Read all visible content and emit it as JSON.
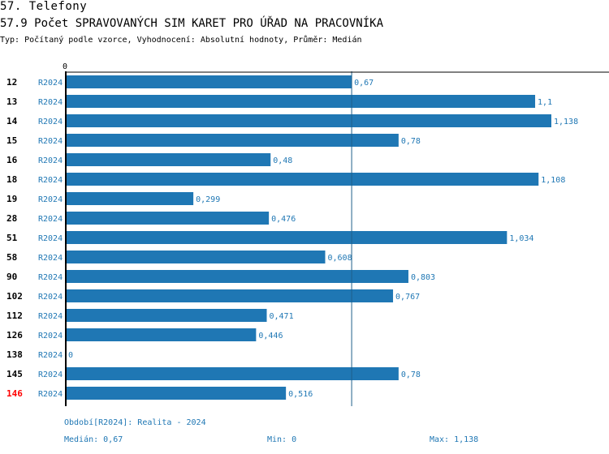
{
  "header": {
    "section": "57. Telefony",
    "title": "57.9 Počet SPRAVOVANÝCH SIM KARET PRO ÚŘAD NA PRACOVNÍKA",
    "subtitle": "Typ: Počítaný podle vzorce, Vyhodnocení: Absolutní hodnoty, Průměr: Medián"
  },
  "chart_data": {
    "type": "bar",
    "orientation": "horizontal",
    "xlim": [
      0,
      1.138
    ],
    "axis_tick_label": "0",
    "categories": [
      "12",
      "13",
      "14",
      "15",
      "16",
      "18",
      "19",
      "28",
      "51",
      "58",
      "90",
      "102",
      "112",
      "126",
      "138",
      "145",
      "146"
    ],
    "highlighted_category": "146",
    "series": [
      {
        "name": "R2024",
        "values": [
          0.67,
          1.1,
          1.138,
          0.78,
          0.48,
          1.108,
          0.299,
          0.476,
          1.034,
          0.608,
          0.803,
          0.767,
          0.471,
          0.446,
          0,
          0.78,
          0.516
        ],
        "labels": [
          "0,67",
          "1,1",
          "1,138",
          "0,78",
          "0,48",
          "1,108",
          "0,299",
          "0,476",
          "1,034",
          "0,608",
          "0,803",
          "0,767",
          "0,471",
          "0,446",
          "0",
          "0,78",
          "0,516"
        ]
      }
    ],
    "reference_line": {
      "name": "Medián",
      "value": 0.67
    },
    "colors": {
      "bar": "#1f77b4",
      "highlight": "#ff0000",
      "axis": "#000000"
    }
  },
  "footer": {
    "period": "Období[R2024]: Realita - 2024",
    "median": "Medián: 0,67",
    "min": "Min: 0",
    "max": "Max: 1,138"
  }
}
